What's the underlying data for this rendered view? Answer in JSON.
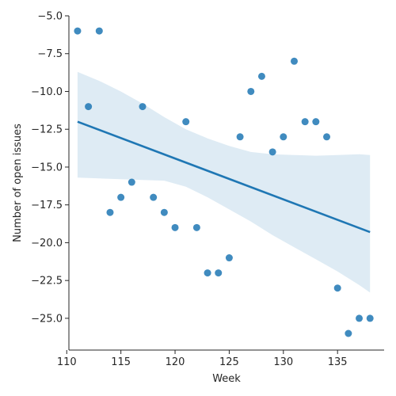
{
  "chart_data": {
    "type": "scatter",
    "title": "",
    "xlabel": "Week",
    "ylabel": "Number of open issues",
    "xlim": [
      110.2,
      139.3
    ],
    "ylim": [
      -27.1,
      -5.0
    ],
    "xticks": [
      110,
      115,
      120,
      125,
      130,
      135
    ],
    "yticks": [
      -25.0,
      -22.5,
      -20.0,
      -17.5,
      -15.0,
      -12.5,
      -10.0,
      -7.5,
      -5.0
    ],
    "xtick_labels": [
      "110",
      "115",
      "120",
      "125",
      "130",
      "135"
    ],
    "ytick_labels": [
      "−25.0",
      "−22.5",
      "−20.0",
      "−17.5",
      "−15.0",
      "−12.5",
      "−10.0",
      "−7.5",
      "−5.0"
    ],
    "grid": false,
    "series": [
      {
        "x": [
          111,
          112,
          113,
          114,
          115,
          116,
          117,
          118,
          119,
          120,
          121,
          122,
          123,
          124,
          125,
          126,
          127,
          128,
          129,
          130,
          131,
          132,
          133,
          134,
          135,
          136,
          137,
          138
        ],
        "y": [
          -6,
          -11,
          -6,
          -18,
          -17,
          -16,
          -11,
          -17,
          -18,
          -19,
          -12,
          -19,
          -22,
          -22,
          -21,
          -13,
          -10,
          -9,
          -14,
          -13,
          -8,
          -12,
          -12,
          -13,
          -23,
          -26,
          -25,
          -25
        ]
      }
    ],
    "regression": {
      "line": [
        [
          111,
          -12.0
        ],
        [
          138,
          -19.3
        ]
      ],
      "ci_band": {
        "x": [
          111,
          113,
          115,
          117,
          119,
          121,
          123,
          125,
          127,
          129,
          131,
          133,
          135,
          137,
          138
        ],
        "upper": [
          -8.7,
          -9.3,
          -10.0,
          -10.8,
          -11.7,
          -12.5,
          -13.1,
          -13.6,
          -14.0,
          -14.15,
          -14.2,
          -14.25,
          -14.2,
          -14.15,
          -14.2
        ],
        "lower": [
          -15.7,
          -15.75,
          -15.8,
          -15.85,
          -15.9,
          -16.3,
          -17.0,
          -17.8,
          -18.6,
          -19.5,
          -20.3,
          -21.1,
          -21.9,
          -22.8,
          -23.3
        ]
      }
    },
    "colors": {
      "points": "#1f77b4",
      "line": "#1f77b4",
      "band": "#1f77b4",
      "axis": "#262626"
    }
  }
}
